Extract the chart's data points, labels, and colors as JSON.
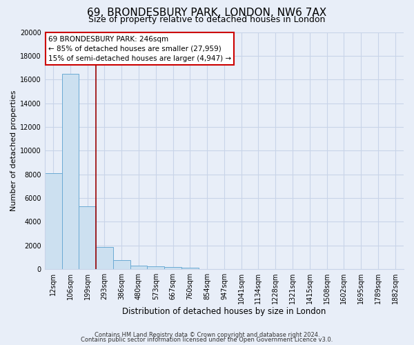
{
  "title1": "69, BRONDESBURY PARK, LONDON, NW6 7AX",
  "title2": "Size of property relative to detached houses in London",
  "xlabel": "Distribution of detached houses by size in London",
  "ylabel": "Number of detached properties",
  "bar_labels": [
    "12sqm",
    "106sqm",
    "199sqm",
    "293sqm",
    "386sqm",
    "480sqm",
    "573sqm",
    "667sqm",
    "760sqm",
    "854sqm",
    "947sqm",
    "1041sqm",
    "1134sqm",
    "1228sqm",
    "1321sqm",
    "1415sqm",
    "1508sqm",
    "1602sqm",
    "1695sqm",
    "1789sqm",
    "1882sqm"
  ],
  "bar_values": [
    8100,
    16500,
    5300,
    1850,
    750,
    280,
    220,
    150,
    100,
    0,
    0,
    0,
    0,
    0,
    0,
    0,
    0,
    0,
    0,
    0,
    0
  ],
  "bar_color": "#cce0f0",
  "bar_edge_color": "#6aaad4",
  "property_line_x": 2.5,
  "property_line_color": "#990000",
  "ylim": [
    0,
    20000
  ],
  "yticks": [
    0,
    2000,
    4000,
    6000,
    8000,
    10000,
    12000,
    14000,
    16000,
    18000,
    20000
  ],
  "annotation_text": "69 BRONDESBURY PARK: 246sqm\n← 85% of detached houses are smaller (27,959)\n15% of semi-detached houses are larger (4,947) →",
  "annotation_box_color": "#ffffff",
  "annotation_box_edge_color": "#cc0000",
  "footer1": "Contains HM Land Registry data © Crown copyright and database right 2024.",
  "footer2": "Contains public sector information licensed under the Open Government Licence v3.0.",
  "background_color": "#e8eef8",
  "grid_color": "#c8d4e8",
  "title1_fontsize": 11,
  "title2_fontsize": 9,
  "ylabel_fontsize": 8,
  "xlabel_fontsize": 8.5,
  "tick_fontsize": 7,
  "annot_fontsize": 7.5,
  "footer_fontsize": 6
}
